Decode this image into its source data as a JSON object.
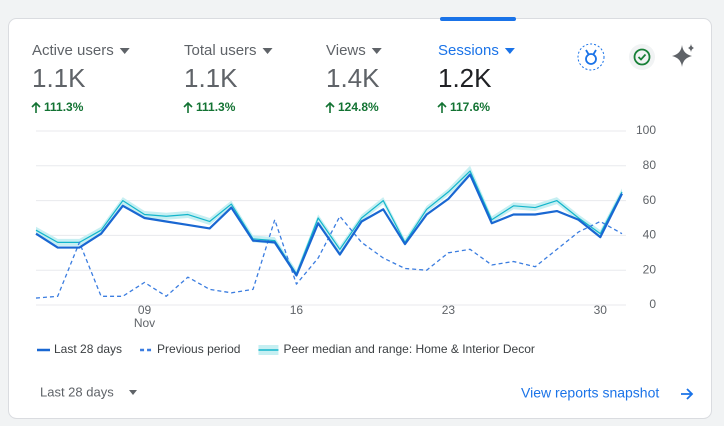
{
  "metrics": [
    {
      "label": "Active users",
      "value": "1.1K",
      "change": "111.3%"
    },
    {
      "label": "Total users",
      "value": "1.1K",
      "change": "111.3%"
    },
    {
      "label": "Views",
      "value": "1.4K",
      "change": "124.8%"
    },
    {
      "label": "Sessions",
      "value": "1.2K",
      "change": "117.6%"
    }
  ],
  "chart_data": {
    "type": "line",
    "categories": [
      null,
      null,
      null,
      null,
      null,
      "09",
      null,
      null,
      null,
      null,
      null,
      null,
      "16",
      null,
      null,
      null,
      null,
      null,
      null,
      "23",
      null,
      null,
      null,
      null,
      null,
      null,
      "30",
      null
    ],
    "month_label": "Nov",
    "series": [
      {
        "name": "Peer median and range: Home & Interior Decor",
        "color": "#12b5cb",
        "style": "solid",
        "range_color": "#c6eff2",
        "values": [
          43,
          36,
          36,
          43,
          60,
          52,
          51,
          52,
          48,
          58,
          38,
          37,
          18,
          50,
          32,
          50,
          60,
          36,
          55,
          65,
          77,
          49,
          57,
          56,
          60,
          50,
          41,
          65
        ],
        "range_low": [
          41,
          34,
          34,
          41,
          57,
          50,
          49,
          50,
          46,
          56,
          36,
          35,
          16,
          48,
          30,
          48,
          58,
          34,
          53,
          63,
          74,
          47,
          55,
          54,
          58,
          48,
          39,
          63
        ],
        "range_high": [
          45,
          38,
          38,
          45,
          62,
          54,
          53,
          54,
          50,
          60,
          40,
          39,
          20,
          52,
          34,
          52,
          62,
          38,
          57,
          67,
          80,
          51,
          59,
          58,
          62,
          52,
          43,
          67
        ]
      },
      {
        "name": "Previous period",
        "color": "#3b7de0",
        "style": "dashed",
        "values": [
          4,
          5,
          36,
          5,
          5,
          13,
          5,
          16,
          9,
          7,
          9,
          49,
          12,
          27,
          51,
          36,
          27,
          21,
          20,
          30,
          32,
          23,
          25,
          22,
          32,
          42,
          48,
          41
        ]
      },
      {
        "name": "Last 28 days",
        "color": "#1967d2",
        "style": "solid",
        "values": [
          41,
          33,
          33,
          41,
          57,
          50,
          48,
          46,
          44,
          56,
          37,
          36,
          17,
          47,
          29,
          48,
          55,
          35,
          52,
          61,
          75,
          47,
          52,
          52,
          54,
          49,
          39,
          64
        ]
      }
    ],
    "ylim": [
      0,
      100
    ],
    "yticks": [
      0,
      20,
      40,
      60,
      80,
      100
    ],
    "grid": true
  },
  "footer": {
    "date_range": "Last 28 days",
    "link": "View reports snapshot"
  }
}
